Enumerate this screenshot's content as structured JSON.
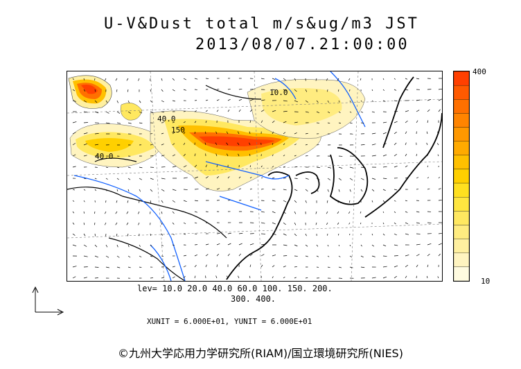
{
  "title": {
    "line1": "U-V&Dust total m/s&ug/m3 JST",
    "line2": "2013/08/07.21:00:00"
  },
  "colorbar": {
    "max_label": "400",
    "min_label": "10",
    "colors": [
      "#fffbe0",
      "#fff4c0",
      "#fff0a0",
      "#ffec80",
      "#ffe860",
      "#ffe640",
      "#ffe020",
      "#ffd000",
      "#ffc000",
      "#ffaa00",
      "#ff9800",
      "#ff8400",
      "#ff7000",
      "#ff5a00",
      "#ff4000"
    ]
  },
  "contour_levels": {
    "line1": "lev= 10.0 20.0 40.0 60.0 100. 150. 200.",
    "line2": "300. 400."
  },
  "units_line": "XUNIT = 6.000E+01, YUNIT = 6.000E+01",
  "contour_labels": [
    "40.0",
    "40.0",
    "10.0",
    "150"
  ],
  "credit": "©九州大学応用力学研究所(RIAM)/国立環境研究所(NIES)",
  "legend_icon": "uv-axis-arrows-icon"
}
